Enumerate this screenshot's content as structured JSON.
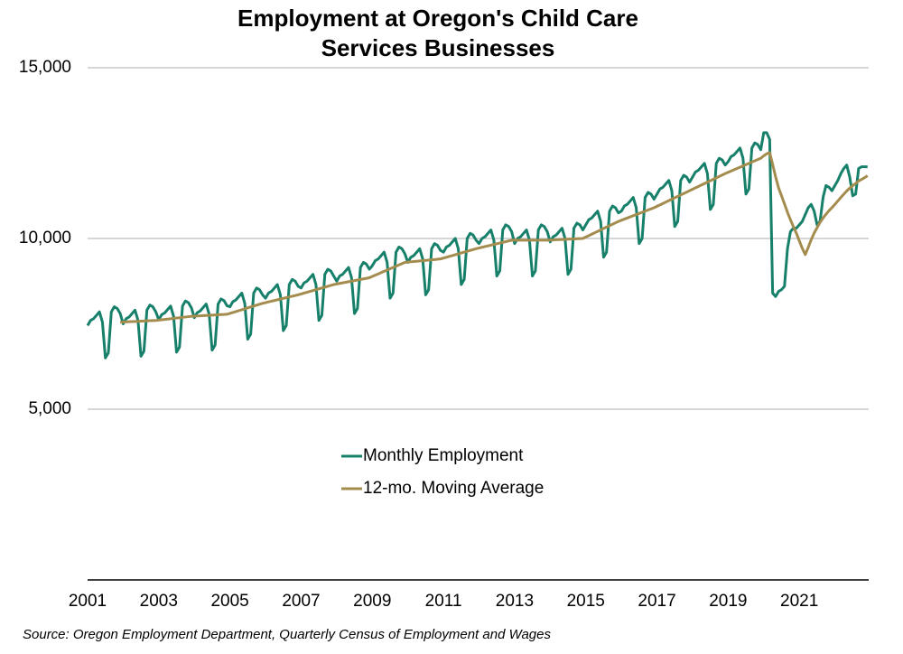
{
  "chart_data": {
    "type": "line",
    "title": "Employment at Oregon's Child Care Services Businesses",
    "source": "Source: Oregon Employment Department, Quarterly Census of Employment and Wages",
    "legend": "center",
    "grid": true,
    "xlim": [
      2001,
      2023
    ],
    "xticks": [
      2001,
      2003,
      2005,
      2007,
      2009,
      2011,
      2013,
      2015,
      2017,
      2019,
      2021
    ],
    "ylim": [
      0,
      15000
    ],
    "yticks": [
      {
        "value": 5000,
        "label": "5,000"
      },
      {
        "value": 10000,
        "label": "10,000"
      },
      {
        "value": 15000,
        "label": "15,000"
      }
    ],
    "x": [
      2001,
      2001.083,
      2001.167,
      2001.25,
      2001.333,
      2001.417,
      2001.5,
      2001.583,
      2001.667,
      2001.75,
      2001.833,
      2001.917,
      2002,
      2002.083,
      2002.167,
      2002.25,
      2002.333,
      2002.417,
      2002.5,
      2002.583,
      2002.667,
      2002.75,
      2002.833,
      2002.917,
      2003,
      2003.083,
      2003.167,
      2003.25,
      2003.333,
      2003.417,
      2003.5,
      2003.583,
      2003.667,
      2003.75,
      2003.833,
      2003.917,
      2004,
      2004.083,
      2004.167,
      2004.25,
      2004.333,
      2004.417,
      2004.5,
      2004.583,
      2004.667,
      2004.75,
      2004.833,
      2004.917,
      2005,
      2005.083,
      2005.167,
      2005.25,
      2005.333,
      2005.417,
      2005.5,
      2005.583,
      2005.667,
      2005.75,
      2005.833,
      2005.917,
      2006,
      2006.083,
      2006.167,
      2006.25,
      2006.333,
      2006.417,
      2006.5,
      2006.583,
      2006.667,
      2006.75,
      2006.833,
      2006.917,
      2007,
      2007.083,
      2007.167,
      2007.25,
      2007.333,
      2007.417,
      2007.5,
      2007.583,
      2007.667,
      2007.75,
      2007.833,
      2007.917,
      2008,
      2008.083,
      2008.167,
      2008.25,
      2008.333,
      2008.417,
      2008.5,
      2008.583,
      2008.667,
      2008.75,
      2008.833,
      2008.917,
      2009,
      2009.083,
      2009.167,
      2009.25,
      2009.333,
      2009.417,
      2009.5,
      2009.583,
      2009.667,
      2009.75,
      2009.833,
      2009.917,
      2010,
      2010.083,
      2010.167,
      2010.25,
      2010.333,
      2010.417,
      2010.5,
      2010.583,
      2010.667,
      2010.75,
      2010.833,
      2010.917,
      2011,
      2011.083,
      2011.167,
      2011.25,
      2011.333,
      2011.417,
      2011.5,
      2011.583,
      2011.667,
      2011.75,
      2011.833,
      2011.917,
      2012,
      2012.083,
      2012.167,
      2012.25,
      2012.333,
      2012.417,
      2012.5,
      2012.583,
      2012.667,
      2012.75,
      2012.833,
      2012.917,
      2013,
      2013.083,
      2013.167,
      2013.25,
      2013.333,
      2013.417,
      2013.5,
      2013.583,
      2013.667,
      2013.75,
      2013.833,
      2013.917,
      2014,
      2014.083,
      2014.167,
      2014.25,
      2014.333,
      2014.417,
      2014.5,
      2014.583,
      2014.667,
      2014.75,
      2014.833,
      2014.917,
      2015,
      2015.083,
      2015.167,
      2015.25,
      2015.333,
      2015.417,
      2015.5,
      2015.583,
      2015.667,
      2015.75,
      2015.833,
      2015.917,
      2016,
      2016.083,
      2016.167,
      2016.25,
      2016.333,
      2016.417,
      2016.5,
      2016.583,
      2016.667,
      2016.75,
      2016.833,
      2016.917,
      2017,
      2017.083,
      2017.167,
      2017.25,
      2017.333,
      2017.417,
      2017.5,
      2017.583,
      2017.667,
      2017.75,
      2017.833,
      2017.917,
      2018,
      2018.083,
      2018.167,
      2018.25,
      2018.333,
      2018.417,
      2018.5,
      2018.583,
      2018.667,
      2018.75,
      2018.833,
      2018.917,
      2019,
      2019.083,
      2019.167,
      2019.25,
      2019.333,
      2019.417,
      2019.5,
      2019.583,
      2019.667,
      2019.75,
      2019.833,
      2019.917,
      2020,
      2020.083,
      2020.167,
      2020.25,
      2020.333,
      2020.417,
      2020.5,
      2020.583,
      2020.667,
      2020.75,
      2020.833,
      2020.917,
      2021,
      2021.083,
      2021.167,
      2021.25,
      2021.333,
      2021.417,
      2021.5,
      2021.583,
      2021.667,
      2021.75,
      2021.833,
      2021.917,
      2022,
      2022.083,
      2022.167,
      2022.25,
      2022.333,
      2022.417,
      2022.5,
      2022.583,
      2022.667,
      2022.75,
      2022.833,
      2022.917
    ],
    "series": [
      {
        "name": "Monthly Employment",
        "color": "#17806a",
        "values": [
          7450,
          7600,
          7650,
          7750,
          7850,
          7550,
          6500,
          6650,
          7850,
          8000,
          7950,
          7800,
          7500,
          7650,
          7700,
          7800,
          7900,
          7600,
          6550,
          6700,
          7900,
          8050,
          8000,
          7850,
          7620,
          7770,
          7820,
          7920,
          8020,
          7720,
          6670,
          6820,
          8020,
          8170,
          8120,
          7970,
          7680,
          7830,
          7880,
          7980,
          8080,
          7780,
          6730,
          6880,
          8080,
          8230,
          8180,
          8030,
          8000,
          8150,
          8200,
          8300,
          8400,
          8100,
          7050,
          7200,
          8400,
          8550,
          8500,
          8350,
          8250,
          8400,
          8450,
          8550,
          8650,
          8350,
          7300,
          7450,
          8650,
          8800,
          8750,
          8600,
          8550,
          8700,
          8750,
          8850,
          8950,
          8650,
          7600,
          7750,
          8950,
          9100,
          9050,
          8900,
          8750,
          8900,
          8950,
          9050,
          9150,
          8850,
          7800,
          7950,
          9150,
          9300,
          9250,
          9100,
          9200,
          9350,
          9400,
          9500,
          9600,
          9300,
          8250,
          8400,
          9600,
          9750,
          9700,
          9550,
          9300,
          9450,
          9500,
          9600,
          9700,
          9400,
          8350,
          8500,
          9700,
          9850,
          9800,
          9650,
          9600,
          9750,
          9800,
          9900,
          10000,
          9700,
          8650,
          8800,
          10000,
          10150,
          10100,
          9950,
          9850,
          10000,
          10050,
          10150,
          10250,
          9950,
          8900,
          9050,
          10250,
          10400,
          10350,
          10200,
          9850,
          10000,
          10050,
          10150,
          10250,
          9950,
          8900,
          9050,
          10250,
          10400,
          10350,
          10200,
          9900,
          10050,
          10100,
          10200,
          10300,
          10000,
          8950,
          9100,
          10300,
          10450,
          10400,
          10250,
          10400,
          10550,
          10600,
          10700,
          10800,
          10500,
          9450,
          9600,
          10800,
          10950,
          10900,
          10750,
          10800,
          10950,
          11000,
          11100,
          11200,
          10900,
          9850,
          10000,
          11200,
          11350,
          11300,
          11150,
          11300,
          11450,
          11500,
          11600,
          11700,
          11400,
          10350,
          10500,
          11700,
          11850,
          11800,
          11650,
          11800,
          11950,
          12000,
          12100,
          12200,
          11900,
          10850,
          11000,
          12200,
          12350,
          12300,
          12150,
          12250,
          12400,
          12450,
          12550,
          12650,
          12350,
          11300,
          11450,
          12650,
          12800,
          12750,
          12600,
          13100,
          13100,
          12900,
          8400,
          8300,
          8450,
          8500,
          8600,
          9700,
          10200,
          10300,
          10300,
          10400,
          10500,
          10700,
          10900,
          11000,
          10800,
          10400,
          10500,
          11200,
          11550,
          11500,
          11400,
          11550,
          11700,
          11900,
          12050,
          12150,
          11800,
          11250,
          11300,
          12050,
          12100,
          12100,
          12100
        ]
      },
      {
        "name": "12-mo. Moving Average",
        "color": "#a48c4e",
        "values": [
          null,
          null,
          null,
          null,
          null,
          null,
          null,
          null,
          null,
          null,
          null,
          7550,
          7554,
          7558,
          7563,
          7567,
          7571,
          7575,
          7579,
          7583,
          7588,
          7592,
          7596,
          7600,
          7610,
          7620,
          7630,
          7640,
          7650,
          7660,
          7670,
          7680,
          7690,
          7700,
          7710,
          7720,
          7725,
          7730,
          7735,
          7740,
          7745,
          7750,
          7755,
          7760,
          7765,
          7770,
          7775,
          7780,
          7807,
          7833,
          7860,
          7887,
          7913,
          7940,
          7967,
          7993,
          8020,
          8047,
          8073,
          8100,
          8121,
          8142,
          8163,
          8183,
          8204,
          8225,
          8246,
          8267,
          8288,
          8308,
          8329,
          8350,
          8375,
          8400,
          8425,
          8450,
          8475,
          8500,
          8525,
          8550,
          8575,
          8600,
          8625,
          8650,
          8667,
          8683,
          8700,
          8717,
          8733,
          8750,
          8767,
          8783,
          8800,
          8817,
          8833,
          8850,
          8888,
          8925,
          8963,
          9000,
          9038,
          9075,
          9113,
          9150,
          9188,
          9225,
          9263,
          9300,
          9308,
          9317,
          9325,
          9333,
          9342,
          9350,
          9358,
          9367,
          9375,
          9383,
          9392,
          9400,
          9425,
          9450,
          9475,
          9500,
          9525,
          9550,
          9575,
          9600,
          9625,
          9650,
          9675,
          9700,
          9721,
          9742,
          9763,
          9783,
          9804,
          9825,
          9846,
          9867,
          9888,
          9908,
          9929,
          9950,
          9950,
          9950,
          9950,
          9950,
          9950,
          9950,
          9950,
          9950,
          9950,
          9950,
          9950,
          9950,
          9954,
          9958,
          9963,
          9967,
          9971,
          9975,
          9979,
          9983,
          9988,
          9992,
          9996,
          10000,
          10042,
          10083,
          10125,
          10167,
          10208,
          10250,
          10292,
          10333,
          10375,
          10417,
          10458,
          10500,
          10533,
          10567,
          10600,
          10633,
          10667,
          10700,
          10733,
          10767,
          10800,
          10833,
          10867,
          10900,
          10942,
          10983,
          11025,
          11067,
          11108,
          11150,
          11192,
          11233,
          11275,
          11317,
          11358,
          11400,
          11442,
          11483,
          11525,
          11567,
          11608,
          11650,
          11692,
          11733,
          11775,
          11817,
          11858,
          11900,
          11938,
          11975,
          12013,
          12050,
          12088,
          12125,
          12163,
          12200,
          12238,
          12275,
          12313,
          12350,
          12421,
          12479,
          12517,
          12171,
          11808,
          11483,
          11250,
          11013,
          10767,
          10550,
          10346,
          10154,
          9929,
          9712,
          9529,
          9737,
          9962,
          10158,
          10316,
          10474,
          10599,
          10712,
          10812,
          10904,
          11000,
          11100,
          11200,
          11296,
          11392,
          11475,
          11546,
          11613,
          11684,
          11730,
          11780,
          11838
        ]
      }
    ]
  }
}
